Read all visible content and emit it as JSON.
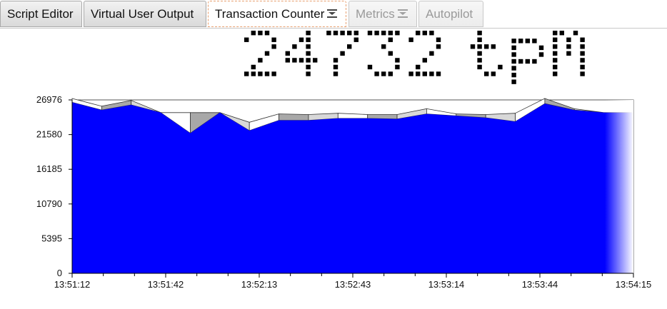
{
  "tabs": [
    {
      "label": "Script Editor",
      "state": "normal",
      "name": "tab-script-editor"
    },
    {
      "label": "Virtual User Output",
      "state": "normal",
      "name": "tab-virtual-user-output"
    },
    {
      "label": "Transaction Counter",
      "state": "active",
      "icon": "collapse-icon",
      "name": "tab-transaction-counter"
    },
    {
      "label": "Metrics",
      "state": "disabled",
      "icon": "collapse-icon",
      "name": "tab-metrics"
    },
    {
      "label": "Autopilot",
      "state": "disabled",
      "name": "tab-autopilot"
    }
  ],
  "counter": {
    "value": "24732",
    "unit": "tpm",
    "color": "#000000"
  },
  "chart_data": {
    "type": "area",
    "title": "",
    "xlabel": "",
    "ylabel": "",
    "ylim": [
      0,
      26976
    ],
    "yticks": [
      "0",
      "5395",
      "10790",
      "16185",
      "21580",
      "26976"
    ],
    "xticks": [
      "13:51:12",
      "13:51:42",
      "13:52:13",
      "13:52:43",
      "13:53:14",
      "13:53:44",
      "13:54:15"
    ],
    "grid": false,
    "x_seconds_from_start": [
      0,
      10,
      20,
      30,
      40,
      50,
      60,
      70,
      80,
      90,
      100,
      110,
      120,
      130,
      140,
      150,
      160,
      170,
      180,
      190
    ],
    "series": [
      {
        "color": "#0000ff",
        "values": [
          26600,
          25400,
          26200,
          25000,
          21800,
          25000,
          22200,
          23800,
          23800,
          24100,
          24100,
          24000,
          24800,
          24500,
          24200,
          23600,
          26400,
          25400,
          25000,
          25000
        ]
      }
    ],
    "previous_overlay": {
      "colors": [
        "#ffffff",
        "#a8a8a8",
        "#d8d8d8"
      ],
      "values": [
        27200,
        26000,
        26900,
        25000,
        25000,
        25000,
        23500,
        24800,
        24700,
        24900,
        24700,
        24700,
        25600,
        24800,
        24700,
        24900,
        27200,
        25600,
        25000,
        25000
      ]
    },
    "axis_color": "#000000",
    "background": "#ffffff"
  }
}
